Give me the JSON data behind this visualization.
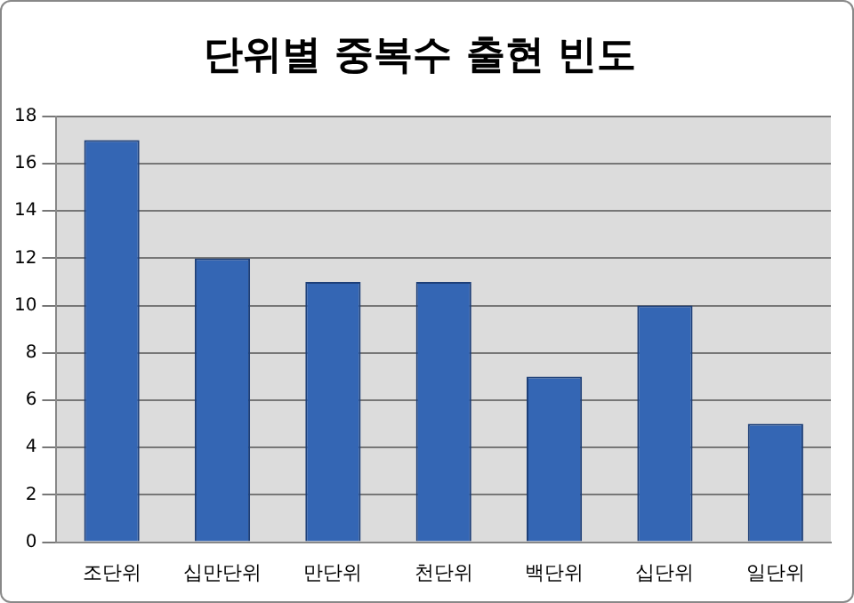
{
  "chart_data": {
    "type": "bar",
    "title": "단위별 중복수 출현 빈도",
    "categories": [
      "조단위",
      "십만단위",
      "만단위",
      "천단위",
      "백단위",
      "십단위",
      "일단위"
    ],
    "values": [
      17,
      12,
      11,
      11,
      7,
      10,
      5
    ],
    "color": "#3466b4",
    "ylim": [
      0,
      18
    ],
    "yticks": [
      0,
      2,
      4,
      6,
      8,
      10,
      12,
      14,
      16,
      18
    ],
    "grid": "y"
  }
}
